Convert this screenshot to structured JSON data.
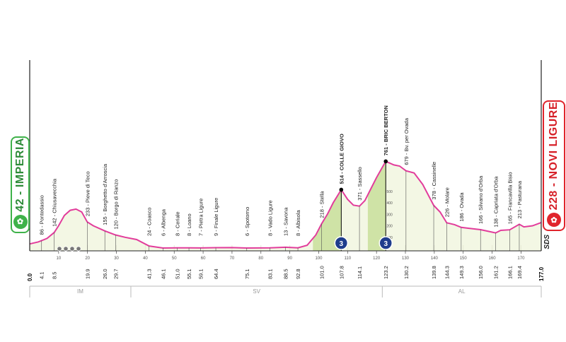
{
  "start": {
    "label": "42 - IMPERIA",
    "color": "#3fb24a"
  },
  "finish": {
    "label": "228 - NOVI LIGURE",
    "color": "#e0242c"
  },
  "sds_label": "SDS",
  "colors": {
    "profile": "#e23c9b",
    "fill": "#f3f7e4",
    "climb": "#cfe3a6",
    "axis": "#222222",
    "gpm_badge": "#1e3d8c"
  },
  "chart_data": {
    "type": "area",
    "xlim": [
      0,
      177
    ],
    "ylim": [
      0,
      700
    ],
    "profile_points": [
      [
        0,
        42
      ],
      [
        3,
        60
      ],
      [
        6,
        90
      ],
      [
        8.5,
        142
      ],
      [
        10,
        200
      ],
      [
        12,
        290
      ],
      [
        14,
        335
      ],
      [
        16,
        345
      ],
      [
        18,
        320
      ],
      [
        19.9,
        233
      ],
      [
        22,
        200
      ],
      [
        26,
        155
      ],
      [
        29.7,
        120
      ],
      [
        33,
        100
      ],
      [
        37,
        80
      ],
      [
        41.3,
        24
      ],
      [
        46.1,
        6
      ],
      [
        51,
        8
      ],
      [
        55.1,
        8
      ],
      [
        59.1,
        7
      ],
      [
        64.4,
        9
      ],
      [
        70,
        10
      ],
      [
        75.1,
        6
      ],
      [
        83.1,
        8
      ],
      [
        88.5,
        13
      ],
      [
        92.8,
        8
      ],
      [
        96,
        30
      ],
      [
        99,
        120
      ],
      [
        101,
        218
      ],
      [
        103,
        300
      ],
      [
        105,
        400
      ],
      [
        107.8,
        514
      ],
      [
        110,
        430
      ],
      [
        112,
        380
      ],
      [
        114.1,
        371
      ],
      [
        116,
        420
      ],
      [
        118,
        520
      ],
      [
        120,
        620
      ],
      [
        123.2,
        761
      ],
      [
        126,
        730
      ],
      [
        128,
        720
      ],
      [
        130.2,
        679
      ],
      [
        133,
        660
      ],
      [
        136,
        560
      ],
      [
        139.8,
        378
      ],
      [
        142,
        320
      ],
      [
        144.3,
        226
      ],
      [
        147,
        210
      ],
      [
        149.3,
        186
      ],
      [
        152,
        178
      ],
      [
        156,
        166
      ],
      [
        159,
        150
      ],
      [
        161.2,
        138
      ],
      [
        163,
        160
      ],
      [
        166.1,
        165
      ],
      [
        169.4,
        213
      ],
      [
        171,
        190
      ],
      [
        174,
        200
      ],
      [
        177,
        228
      ]
    ],
    "climbs": [
      {
        "from": 98,
        "to": 107.8
      },
      {
        "from": 117,
        "to": 123.2
      }
    ],
    "gpm": [
      {
        "km": 107.8,
        "category": "3"
      },
      {
        "km": 123.2,
        "category": "3"
      }
    ],
    "profile_ticks": [
      "10",
      "20",
      "30",
      "40",
      "50",
      "60",
      "70",
      "80",
      "90",
      "100",
      "110",
      "120",
      "130",
      "140",
      "150",
      "160",
      "170"
    ],
    "elevation_ticks": [
      "100",
      "200",
      "300",
      "400",
      "500"
    ],
    "climb_elevation_ticks": [
      "0.2",
      "100",
      "200",
      "300",
      "400",
      "500"
    ],
    "locations": [
      {
        "km": 4.1,
        "label": "86 - Pontedassio",
        "dist": "4.1"
      },
      {
        "km": 8.5,
        "label": "142 - Chiusavecchia",
        "dist": "8.5"
      },
      {
        "km": 19.9,
        "label": "233 - Pieve di Teco",
        "dist": "19.9"
      },
      {
        "km": 26.0,
        "label": "155 - Borghetto d'Arroscia",
        "dist": "26.0"
      },
      {
        "km": 29.7,
        "label": "120 - Borgo di Ranzo",
        "dist": "29.7"
      },
      {
        "km": 41.3,
        "label": "24 - Coasco",
        "dist": "41.3"
      },
      {
        "km": 46.1,
        "label": "6 - Albenga",
        "dist": "46.1"
      },
      {
        "km": 51.0,
        "label": "8 - Ceriale",
        "dist": "51.0"
      },
      {
        "km": 55.1,
        "label": "8 - Loano",
        "dist": "55.1"
      },
      {
        "km": 59.1,
        "label": "7 - Pietra Ligure",
        "dist": "59.1"
      },
      {
        "km": 64.4,
        "label": "9 - Finale Ligure",
        "dist": "64.4"
      },
      {
        "km": 75.1,
        "label": "6 - Spotorno",
        "dist": "75.1"
      },
      {
        "km": 83.1,
        "label": "8 - Vado Ligure",
        "dist": "83.1"
      },
      {
        "km": 88.5,
        "label": "13 - Savona",
        "dist": "88.5"
      },
      {
        "km": 92.8,
        "label": "8 - Albisola",
        "dist": "92.8"
      },
      {
        "km": 101.0,
        "label": "218 - Stella",
        "dist": "101.0"
      },
      {
        "km": 107.8,
        "label": "514 - COLLE GIOVO",
        "dist": "107.8",
        "bold": true
      },
      {
        "km": 114.1,
        "label": "371 - Sassello",
        "dist": "114.1"
      },
      {
        "km": 123.2,
        "label": "761 - BRIC BERTON",
        "dist": "123.2",
        "bold": true
      },
      {
        "km": 130.2,
        "label": "679 - Bv. per Ovada",
        "dist": "130.2"
      },
      {
        "km": 139.8,
        "label": "378 - Cassinelle",
        "dist": "139.8"
      },
      {
        "km": 144.3,
        "label": "226 - Molare",
        "dist": "144.3"
      },
      {
        "km": 149.3,
        "label": "186 - Ovada",
        "dist": "149.3"
      },
      {
        "km": 156.0,
        "label": "166 - Silvano d'Orba",
        "dist": "156.0"
      },
      {
        "km": 161.2,
        "label": "138 - Capriata d'Orba",
        "dist": "161.2"
      },
      {
        "km": 166.1,
        "label": "165 - Francavilla Bisio",
        "dist": "166.1"
      },
      {
        "km": 169.4,
        "label": "213 - Pasturana",
        "dist": "169.4"
      }
    ],
    "start_dist": "0.0",
    "end_dist": "177.0",
    "regions": [
      {
        "label": "IM",
        "from": 0,
        "to": 35
      },
      {
        "label": "SV",
        "from": 35,
        "to": 122
      },
      {
        "label": "AL",
        "from": 122,
        "to": 177
      }
    ]
  }
}
